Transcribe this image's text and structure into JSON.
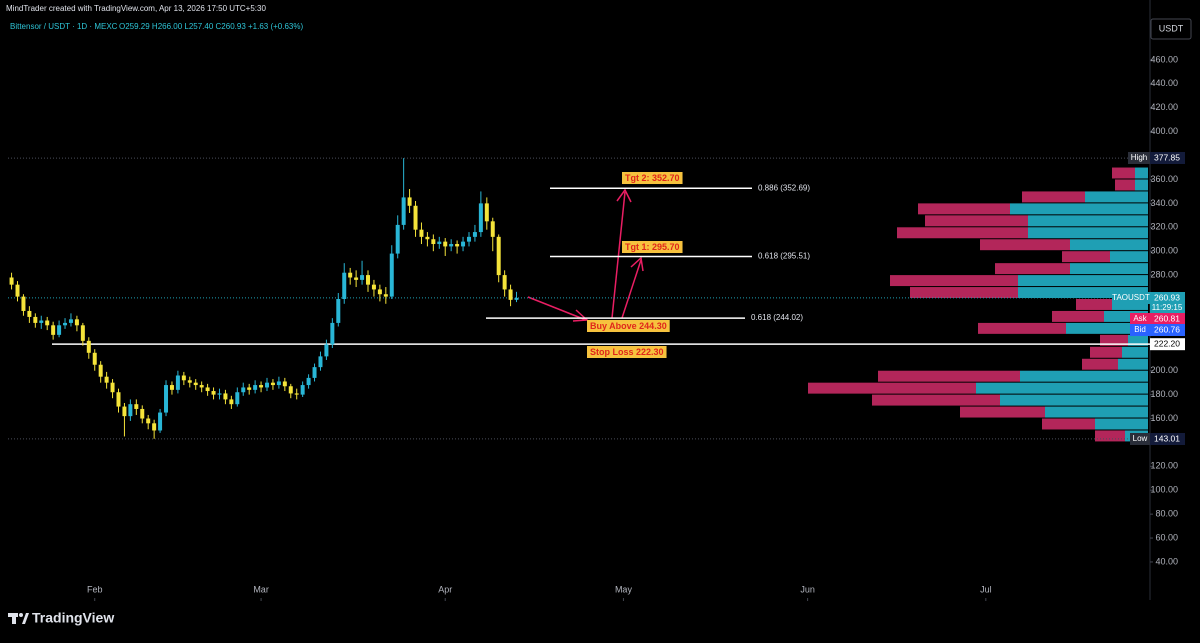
{
  "header": {
    "credit": "MindTrader created with TradingView.com, Apr 13, 2026 17:50 UTC+5:30",
    "symbol": "Bittensor / USDT · 1D · MEXC",
    "ohlc": "O259.29 H266.00 L257.40 C260.93 +1.63 (+0.63%)"
  },
  "chart_data": {
    "type": "candlestick",
    "x": [
      0,
      1,
      2,
      3,
      4,
      5,
      6,
      7,
      8,
      9,
      10,
      11,
      12,
      13,
      14,
      15,
      16,
      17,
      18,
      19,
      20,
      21,
      22,
      23,
      24,
      25,
      26,
      27,
      28,
      29,
      30,
      31,
      32,
      33,
      34,
      35,
      36,
      37,
      38,
      39,
      40,
      41,
      42,
      43,
      44,
      45,
      46,
      47,
      48,
      49,
      50,
      51,
      52,
      53,
      54,
      55,
      56,
      57,
      58,
      59,
      60,
      61,
      62,
      63,
      64,
      65,
      66,
      67,
      68,
      69,
      70,
      71,
      72,
      73,
      74,
      75,
      76,
      77,
      78,
      79,
      80,
      81,
      82,
      83,
      84,
      85
    ],
    "open": [
      278,
      272,
      262,
      250,
      245,
      240,
      242,
      238,
      230,
      238,
      240,
      243,
      238,
      225,
      215,
      205,
      195,
      190,
      182,
      170,
      162,
      172,
      168,
      160,
      156,
      150,
      165,
      188,
      184,
      196,
      192,
      190,
      188,
      186,
      183,
      180,
      181,
      176,
      172,
      182,
      186,
      184,
      188,
      186,
      190,
      188,
      191,
      187,
      181,
      180,
      188,
      194,
      203,
      212,
      222,
      240,
      260,
      282,
      278,
      276,
      280,
      272,
      268,
      264,
      262,
      298,
      322,
      345,
      338,
      318,
      312,
      310,
      306,
      308,
      304,
      306,
      304,
      308,
      312,
      316,
      340,
      325,
      312,
      280,
      268,
      259.29
    ],
    "high": [
      282,
      275,
      264,
      254,
      248,
      246,
      245,
      241,
      242,
      244,
      248,
      246,
      240,
      228,
      218,
      208,
      199,
      193,
      185,
      173,
      176,
      176,
      171,
      163,
      159,
      168,
      192,
      191,
      200,
      199,
      195,
      193,
      191,
      189,
      186,
      185,
      184,
      179,
      186,
      190,
      189,
      192,
      191,
      194,
      193,
      195,
      194,
      189,
      185,
      191,
      197,
      206,
      216,
      226,
      244,
      265,
      290,
      286,
      284,
      292,
      284,
      276,
      272,
      270,
      305,
      330,
      377.85,
      352,
      342,
      324,
      316,
      314,
      312,
      311,
      310,
      309,
      312,
      316,
      322,
      350,
      345,
      328,
      314,
      284,
      272,
      266
    ],
    "low": [
      268,
      258,
      246,
      240,
      236,
      235,
      234,
      226,
      228,
      235,
      237,
      233,
      221,
      210,
      200,
      190,
      185,
      177,
      165,
      145,
      158,
      163,
      156,
      151,
      143.01,
      148,
      162,
      180,
      181,
      188,
      186,
      184,
      182,
      179,
      176,
      176,
      172,
      168,
      170,
      179,
      180,
      181,
      182,
      183,
      184,
      185,
      183,
      177,
      176,
      178,
      185,
      191,
      200,
      209,
      219,
      237,
      256,
      272,
      270,
      272,
      266,
      262,
      258,
      256,
      260,
      294,
      318,
      332,
      312,
      306,
      304,
      300,
      302,
      296,
      300,
      298,
      300,
      304,
      308,
      312,
      318,
      300,
      274,
      262,
      254,
      257.4
    ],
    "close": [
      272,
      262,
      250,
      245,
      240,
      242,
      238,
      230,
      238,
      240,
      243,
      238,
      225,
      215,
      205,
      195,
      190,
      182,
      170,
      162,
      172,
      168,
      160,
      156,
      150,
      165,
      188,
      184,
      196,
      192,
      190,
      188,
      186,
      183,
      180,
      181,
      176,
      172,
      182,
      186,
      184,
      188,
      186,
      190,
      188,
      191,
      187,
      181,
      180,
      188,
      194,
      203,
      212,
      222,
      240,
      260,
      282,
      278,
      276,
      280,
      272,
      268,
      264,
      262,
      298,
      322,
      345,
      338,
      318,
      312,
      310,
      306,
      308,
      304,
      306,
      304,
      308,
      312,
      316,
      340,
      325,
      312,
      280,
      268,
      259.29,
      260.93
    ],
    "up_color": "#29b6d6",
    "down_color": "#f5e43a",
    "xlim": [
      -0.6,
      191.3
    ],
    "xticks": [
      {
        "value": 14,
        "label": "Feb"
      },
      {
        "value": 42,
        "label": "Mar"
      },
      {
        "value": 73,
        "label": "Apr"
      },
      {
        "value": 103,
        "label": "May"
      },
      {
        "value": 134,
        "label": "Jun"
      },
      {
        "value": 164,
        "label": "Jul"
      }
    ],
    "ylim": [
      24.9,
      476.7
    ],
    "yticks": [
      {
        "value": 460,
        "label": "460.00"
      },
      {
        "value": 440,
        "label": "440.00"
      },
      {
        "value": 420,
        "label": "420.00"
      },
      {
        "value": 400,
        "label": "400.00"
      },
      {
        "value": 360,
        "label": "360.00"
      },
      {
        "value": 340,
        "label": "340.00"
      },
      {
        "value": 320,
        "label": "320.00"
      },
      {
        "value": 300,
        "label": "300.00"
      },
      {
        "value": 280,
        "label": "280.00"
      },
      {
        "value": 200,
        "label": "200.00"
      },
      {
        "value": 180,
        "label": "180.00"
      },
      {
        "value": 160,
        "label": "160.00"
      },
      {
        "value": 120,
        "label": "120.00"
      },
      {
        "value": 100,
        "label": "100.00"
      },
      {
        "value": 80,
        "label": "80.00"
      },
      {
        "value": 60,
        "label": "60.00"
      },
      {
        "value": 40,
        "label": "40.00"
      }
    ],
    "currency": "USDT",
    "high_marker": {
      "label": "High",
      "value": 377.85
    },
    "low_marker": {
      "label": "Low",
      "value": 143.01
    },
    "last_price": {
      "label": "TAOUSDT",
      "countdown": "11:29:15"
    },
    "ask": {
      "label": "Ask",
      "value": 260.81
    },
    "bid": {
      "label": "Bid",
      "value": 260.76
    },
    "stop_level": {
      "value": 222.2,
      "label": "222.20"
    },
    "fib_levels": [
      {
        "value": 352.69,
        "label": "0.886 (352.69)"
      },
      {
        "value": 295.51,
        "label": "0.618 (295.51)"
      },
      {
        "value": 244.02,
        "label": "0.618 (244.02)"
      }
    ],
    "annotations": [
      "Tgt 2: 352.70",
      "Tgt 1: 295.70",
      "Buy Above 244.30",
      "Stop Loss 222.30"
    ],
    "volume_profile": {
      "bins": [
        140,
        150,
        160,
        170,
        180,
        190,
        200,
        210,
        220,
        230,
        240,
        250,
        260,
        270,
        280,
        290,
        300,
        310,
        320,
        330,
        340,
        350,
        360,
        370
      ],
      "up": [
        23,
        53,
        103,
        148,
        172,
        128,
        30,
        26,
        20,
        82,
        44,
        36,
        130,
        130,
        78,
        38,
        78,
        120,
        120,
        138,
        63,
        13,
        13
      ],
      "down": [
        30,
        53,
        85,
        128,
        168,
        142,
        36,
        32,
        28,
        88,
        52,
        36,
        108,
        128,
        75,
        48,
        90,
        131,
        103,
        92,
        63,
        20,
        23
      ],
      "up_color": "#1f9fb4",
      "down_color": "#b3265a"
    }
  },
  "footer": {
    "brand": "TradingView"
  }
}
